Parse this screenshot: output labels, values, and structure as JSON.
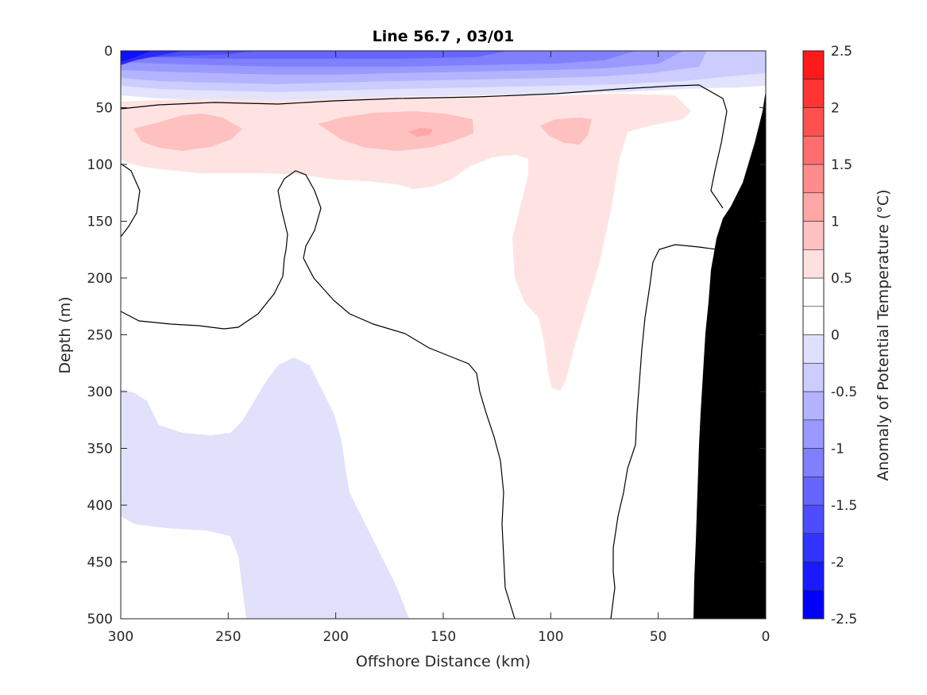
{
  "chart_data": {
    "type": "contour",
    "title": "Line 56.7 , 03/01",
    "xlabel": "Offshore Distance (km)",
    "ylabel": "Depth (m)",
    "colorbar_label": "Anomaly of Potential Temperature (°C)",
    "xlim": [
      300,
      0
    ],
    "ylim": [
      0,
      500
    ],
    "x_reversed": true,
    "y_reversed": true,
    "xticks": [
      300,
      250,
      200,
      150,
      100,
      50,
      0
    ],
    "yticks": [
      0,
      50,
      100,
      150,
      200,
      250,
      300,
      350,
      400,
      450,
      500
    ],
    "colorbar_ticks": [
      "2.5",
      "2",
      "1.5",
      "1",
      "0.5",
      "0",
      "-0.5",
      "-1",
      "-1.5",
      "-2",
      "-2.5"
    ],
    "colorbar_ticks_values": [
      2.5,
      2,
      1.5,
      1,
      0.5,
      0,
      -0.5,
      -1,
      -1.5,
      -2,
      -2.5
    ],
    "colorbar_levels": [
      -2.5,
      -2.25,
      -2,
      -1.75,
      -1.5,
      -1.25,
      -1,
      -0.75,
      -0.5,
      -0.25,
      0,
      0.25,
      0.5,
      0.75,
      1,
      1.25,
      1.5,
      1.75,
      2,
      2.25,
      2.5
    ],
    "colorbar_colors": [
      "#0000ff",
      "#1a1aff",
      "#3333ff",
      "#4d4dff",
      "#6666ff",
      "#8080ff",
      "#9999ff",
      "#b3b3ff",
      "#ccccff",
      "#e0e0fc",
      "#ffffff",
      "#ffffff",
      "#ffe0e0",
      "#ffc0c0",
      "#ffa6a6",
      "#ff8c8c",
      "#ff6e6e",
      "#ff5050",
      "#ff3434",
      "#ff1a1a"
    ],
    "bathymetry_color": "#000000",
    "zero_contour_color": "#000000",
    "regions": [
      {
        "name": "surface-cold-anomaly",
        "value": -1.5,
        "x_range_km": [
          300,
          0
        ],
        "depth_range_m": [
          0,
          40
        ]
      },
      {
        "name": "subsurface-warm-layer",
        "value": 0.5,
        "x_range_km": [
          295,
          65
        ],
        "depth_range_m": [
          40,
          120
        ]
      },
      {
        "name": "warm-core-west",
        "value": 1.0,
        "center_km": [
          270,
          70
        ]
      },
      {
        "name": "warm-core-middle",
        "value": 1.0,
        "center_km": [
          160,
          65
        ]
      },
      {
        "name": "warm-core-east",
        "value": 1.25,
        "center_km": [
          160,
          70
        ]
      },
      {
        "name": "warm-tongue",
        "value": 0.5,
        "x_range_km": [
          135,
          75
        ],
        "depth_range_m": [
          80,
          300
        ]
      },
      {
        "name": "deep-cold-anomaly",
        "value": -0.5,
        "x_range_km": [
          300,
          165
        ],
        "depth_range_m": [
          270,
          500
        ]
      }
    ]
  }
}
